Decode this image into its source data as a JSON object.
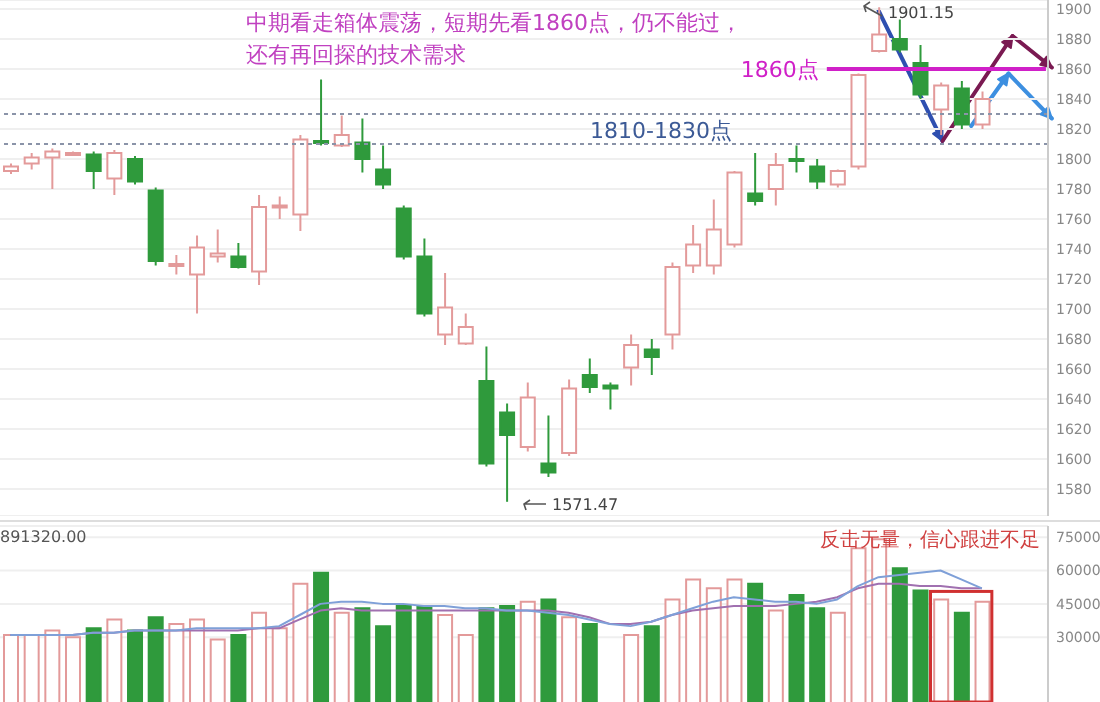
{
  "chart_data": [
    {
      "type": "candlestick",
      "categories": [
        null,
        null,
        null,
        null,
        null,
        null,
        null,
        null,
        null,
        null,
        null,
        null,
        null,
        null,
        null,
        null,
        null,
        null,
        null,
        null,
        null,
        null,
        null,
        null,
        null,
        null,
        null,
        null,
        null,
        null,
        null,
        null,
        null,
        null,
        null,
        null,
        null,
        null,
        null,
        null,
        null,
        null,
        null,
        null,
        null,
        null,
        null,
        null
      ],
      "ohlc": [
        [
          1792,
          1797,
          1790,
          1795
        ],
        [
          1797,
          1804,
          1793,
          1801
        ],
        [
          1801,
          1807,
          1780,
          1805
        ],
        [
          1804,
          1805,
          1803,
          1804
        ],
        [
          1803,
          1805,
          1780,
          1792
        ],
        [
          1787,
          1806,
          1776,
          1804
        ],
        [
          1800,
          1802,
          1783,
          1785
        ],
        [
          1779,
          1781,
          1729,
          1732
        ],
        [
          1729,
          1736,
          1723,
          1730
        ],
        [
          1723,
          1749,
          1697,
          1741
        ],
        [
          1735,
          1753,
          1731,
          1737
        ],
        [
          1735,
          1744,
          1727,
          1728
        ],
        [
          1725,
          1776,
          1716,
          1768
        ],
        [
          1768,
          1775,
          1760,
          1769
        ],
        [
          1763,
          1816,
          1752,
          1813
        ],
        [
          1812,
          1853,
          1809,
          1811
        ],
        [
          1809,
          1829,
          1808,
          1816
        ],
        [
          1811,
          1827,
          1791,
          1800
        ],
        [
          1793,
          1809,
          1780,
          1783
        ],
        [
          1767,
          1769,
          1733,
          1735
        ],
        [
          1735,
          1747,
          1695,
          1697
        ],
        [
          1683,
          1724,
          1676,
          1701
        ],
        [
          1677,
          1697,
          1676,
          1688
        ],
        [
          1652,
          1675,
          1595,
          1597
        ],
        [
          1631,
          1637,
          1571.47,
          1616
        ],
        [
          1608,
          1651,
          1605,
          1641
        ],
        [
          1597,
          1629,
          1588,
          1591
        ],
        [
          1604,
          1653,
          1602,
          1647
        ],
        [
          1656,
          1667,
          1644,
          1648
        ],
        [
          1649,
          1651,
          1633,
          1647
        ],
        [
          1661,
          1683,
          1649,
          1676
        ],
        [
          1673,
          1680,
          1656,
          1668
        ],
        [
          1683,
          1731,
          1673,
          1728
        ],
        [
          1729,
          1756,
          1724,
          1743
        ],
        [
          1729,
          1773,
          1723,
          1753
        ],
        [
          1743,
          1792,
          1741,
          1791
        ],
        [
          1777,
          1804,
          1769,
          1772
        ],
        [
          1780,
          1804,
          1769,
          1796
        ],
        [
          1800,
          1809,
          1791,
          1799
        ],
        [
          1795,
          1800,
          1780,
          1785
        ],
        [
          1783,
          1793,
          1781,
          1792
        ],
        [
          1795,
          1857,
          1793,
          1856
        ],
        [
          1872,
          1901.15,
          1871,
          1883
        ],
        [
          1880,
          1893,
          1871,
          1873
        ],
        [
          1864,
          1876,
          1840,
          1843
        ],
        [
          1833,
          1851,
          1816,
          1849
        ],
        [
          1847,
          1852,
          1820,
          1823
        ],
        [
          1823,
          1845,
          1820,
          1840
        ]
      ],
      "colors": [
        "#e39a9a",
        "#e39a9a",
        "#e39a9a",
        "#e39a9a",
        "#2f9a3c",
        "#e39a9a",
        "#2f9a3c",
        "#2f9a3c",
        "#e39a9a",
        "#e39a9a",
        "#e39a9a",
        "#2f9a3c",
        "#e39a9a",
        "#e39a9a",
        "#e39a9a",
        "#2f9a3c",
        "#e39a9a",
        "#2f9a3c",
        "#2f9a3c",
        "#2f9a3c",
        "#2f9a3c",
        "#e39a9a",
        "#e39a9a",
        "#2f9a3c",
        "#2f9a3c",
        "#e39a9a",
        "#2f9a3c",
        "#e39a9a",
        "#2f9a3c",
        "#2f9a3c",
        "#e39a9a",
        "#2f9a3c",
        "#e39a9a",
        "#e39a9a",
        "#e39a9a",
        "#e39a9a",
        "#2f9a3c",
        "#e39a9a",
        "#2f9a3c",
        "#2f9a3c",
        "#e39a9a",
        "#e39a9a",
        "#e39a9a",
        "#2f9a3c",
        "#2f9a3c",
        "#e39a9a",
        "#2f9a3c",
        "#e39a9a"
      ],
      "ylim": [
        1562,
        1906
      ],
      "yticks": [
        1580,
        1600,
        1620,
        1640,
        1660,
        1680,
        1700,
        1720,
        1740,
        1760,
        1780,
        1800,
        1820,
        1840,
        1860,
        1880,
        1900
      ],
      "grid": "y",
      "tick_labels": "y",
      "ref_lines": [
        {
          "axis": "y",
          "value": 1860,
          "label": "1860点",
          "color": "#d020c8",
          "line_style": "solid"
        },
        {
          "axis": "y",
          "value": 1830,
          "color": "#8a93a8",
          "line_style": "dotted"
        },
        {
          "axis": "y",
          "value": 1810,
          "color": "#8a93a8",
          "line_style": "dotted"
        }
      ],
      "annotations": [
        "中期看走箱体震荡，短期先看1860点，仍不能过，",
        "还有再回探的技术需求",
        "1810-1830点",
        "1901.15",
        "1571.47"
      ]
    },
    {
      "type": "bar",
      "categories": [
        null,
        null,
        null,
        null,
        null,
        null,
        null,
        null,
        null,
        null,
        null,
        null,
        null,
        null,
        null,
        null,
        null,
        null,
        null,
        null,
        null,
        null,
        null,
        null,
        null,
        null,
        null,
        null,
        null,
        null,
        null,
        null,
        null,
        null,
        null,
        null,
        null,
        null,
        null,
        null,
        null,
        null,
        null,
        null,
        null,
        null,
        null,
        null
      ],
      "series": [
        {
          "type": "bar",
          "values": [
            31000,
            31000,
            33000,
            30000,
            34000,
            38000,
            33000,
            39000,
            36000,
            38000,
            29000,
            31000,
            41000,
            34000,
            54000,
            59000,
            41000,
            43000,
            35000,
            44000,
            44000,
            40000,
            31000,
            43000,
            44000,
            46000,
            47000,
            39000,
            36000,
            null,
            31000,
            35000,
            47000,
            56000,
            52000,
            56000,
            54000,
            42000,
            49000,
            43000,
            41000,
            70000,
            74000,
            61000,
            51000,
            47000,
            41000,
            46000
          ],
          "colors": [
            "#e39a9a",
            "#e39a9a",
            "#e39a9a",
            "#e39a9a",
            "#2f9a3c",
            "#e39a9a",
            "#2f9a3c",
            "#2f9a3c",
            "#e39a9a",
            "#e39a9a",
            "#e39a9a",
            "#2f9a3c",
            "#e39a9a",
            "#e39a9a",
            "#e39a9a",
            "#2f9a3c",
            "#e39a9a",
            "#2f9a3c",
            "#2f9a3c",
            "#2f9a3c",
            "#2f9a3c",
            "#e39a9a",
            "#e39a9a",
            "#2f9a3c",
            "#2f9a3c",
            "#e39a9a",
            "#2f9a3c",
            "#e39a9a",
            "#2f9a3c",
            "#2f9a3c",
            "#e39a9a",
            "#2f9a3c",
            "#e39a9a",
            "#e39a9a",
            "#e39a9a",
            "#e39a9a",
            "#2f9a3c",
            "#e39a9a",
            "#2f9a3c",
            "#2f9a3c",
            "#e39a9a",
            "#e39a9a",
            "#e39a9a",
            "#2f9a3c",
            "#2f9a3c",
            "#e39a9a",
            "#2f9a3c",
            "#e39a9a"
          ]
        },
        {
          "type": "line",
          "color": "#a070b0",
          "values": [
            31000,
            31000,
            31000,
            31000,
            32000,
            32000,
            33000,
            33000,
            33000,
            33000,
            33000,
            33000,
            34000,
            34000,
            38000,
            42000,
            43000,
            42000,
            42000,
            42000,
            42000,
            42000,
            42000,
            42000,
            42000,
            42000,
            42000,
            41000,
            39000,
            36000,
            36000,
            37000,
            40000,
            42000,
            43000,
            44000,
            44000,
            44000,
            45000,
            46000,
            48000,
            52000,
            54000,
            54000,
            53000,
            53000,
            52000,
            52000
          ]
        },
        {
          "type": "line",
          "color": "#7fa0d8",
          "values": [
            31000,
            31000,
            31000,
            31000,
            32000,
            32000,
            33000,
            33000,
            33000,
            34000,
            34000,
            34000,
            34000,
            35000,
            40000,
            45000,
            46000,
            46000,
            45000,
            45000,
            44000,
            44000,
            43000,
            43000,
            42000,
            42000,
            41000,
            40000,
            38000,
            36000,
            35000,
            37000,
            40000,
            43000,
            46000,
            48000,
            47000,
            46000,
            46000,
            45000,
            47000,
            53000,
            57000,
            58000,
            59000,
            60000,
            56000,
            52000
          ]
        }
      ],
      "ylim": [
        0,
        80000
      ],
      "yticks": [
        30000,
        45000,
        60000,
        75000
      ],
      "grid": "y",
      "tick_labels": "y",
      "marker": "none",
      "annotations": [
        "891320.00",
        "反击无量，信心跟进不足"
      ]
    }
  ]
}
